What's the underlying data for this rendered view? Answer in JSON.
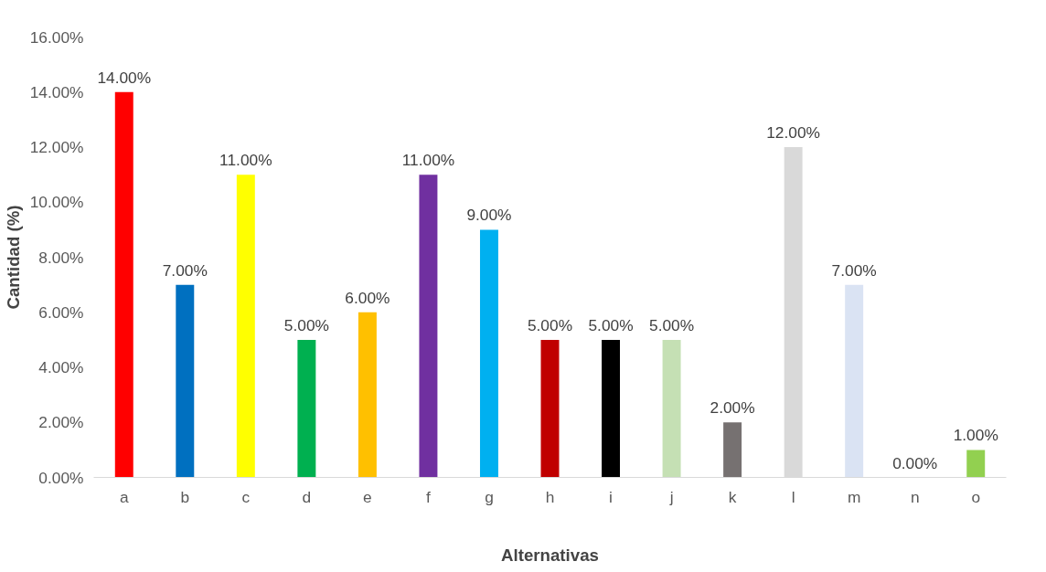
{
  "chart_data": {
    "type": "bar",
    "xlabel": "Alternativas",
    "ylabel": "Cantidad (%)",
    "categories": [
      "a",
      "b",
      "c",
      "d",
      "e",
      "f",
      "g",
      "h",
      "i",
      "j",
      "k",
      "l",
      "m",
      "n",
      "o"
    ],
    "values": [
      14,
      7,
      11,
      5,
      6,
      11,
      9,
      5,
      5,
      5,
      2,
      12,
      7,
      0,
      1
    ],
    "colors": [
      "#ff0000",
      "#0070c0",
      "#ffff00",
      "#00b050",
      "#ffc000",
      "#7030a0",
      "#00b0f0",
      "#c00000",
      "#000000",
      "#c5e0b4",
      "#767171",
      "#d9d9d9",
      "#dae3f3",
      "#a5a5a5",
      "#92d050"
    ],
    "value_labels": [
      "14.00%",
      "7.00%",
      "11.00%",
      "5.00%",
      "6.00%",
      "11.00%",
      "9.00%",
      "5.00%",
      "5.00%",
      "5.00%",
      "2.00%",
      "12.00%",
      "7.00%",
      "0.00%",
      "1.00%"
    ],
    "ylim": [
      0,
      16
    ],
    "yticks": [
      {
        "value": 0,
        "label": "0.00%"
      },
      {
        "value": 2,
        "label": "2.00%"
      },
      {
        "value": 4,
        "label": "4.00%"
      },
      {
        "value": 6,
        "label": "6.00%"
      },
      {
        "value": 8,
        "label": "8.00%"
      },
      {
        "value": 10,
        "label": "10.00%"
      },
      {
        "value": 12,
        "label": "12.00%"
      },
      {
        "value": 14,
        "label": "14.00%"
      },
      {
        "value": 16,
        "label": "16.00%"
      }
    ],
    "grid": false
  }
}
